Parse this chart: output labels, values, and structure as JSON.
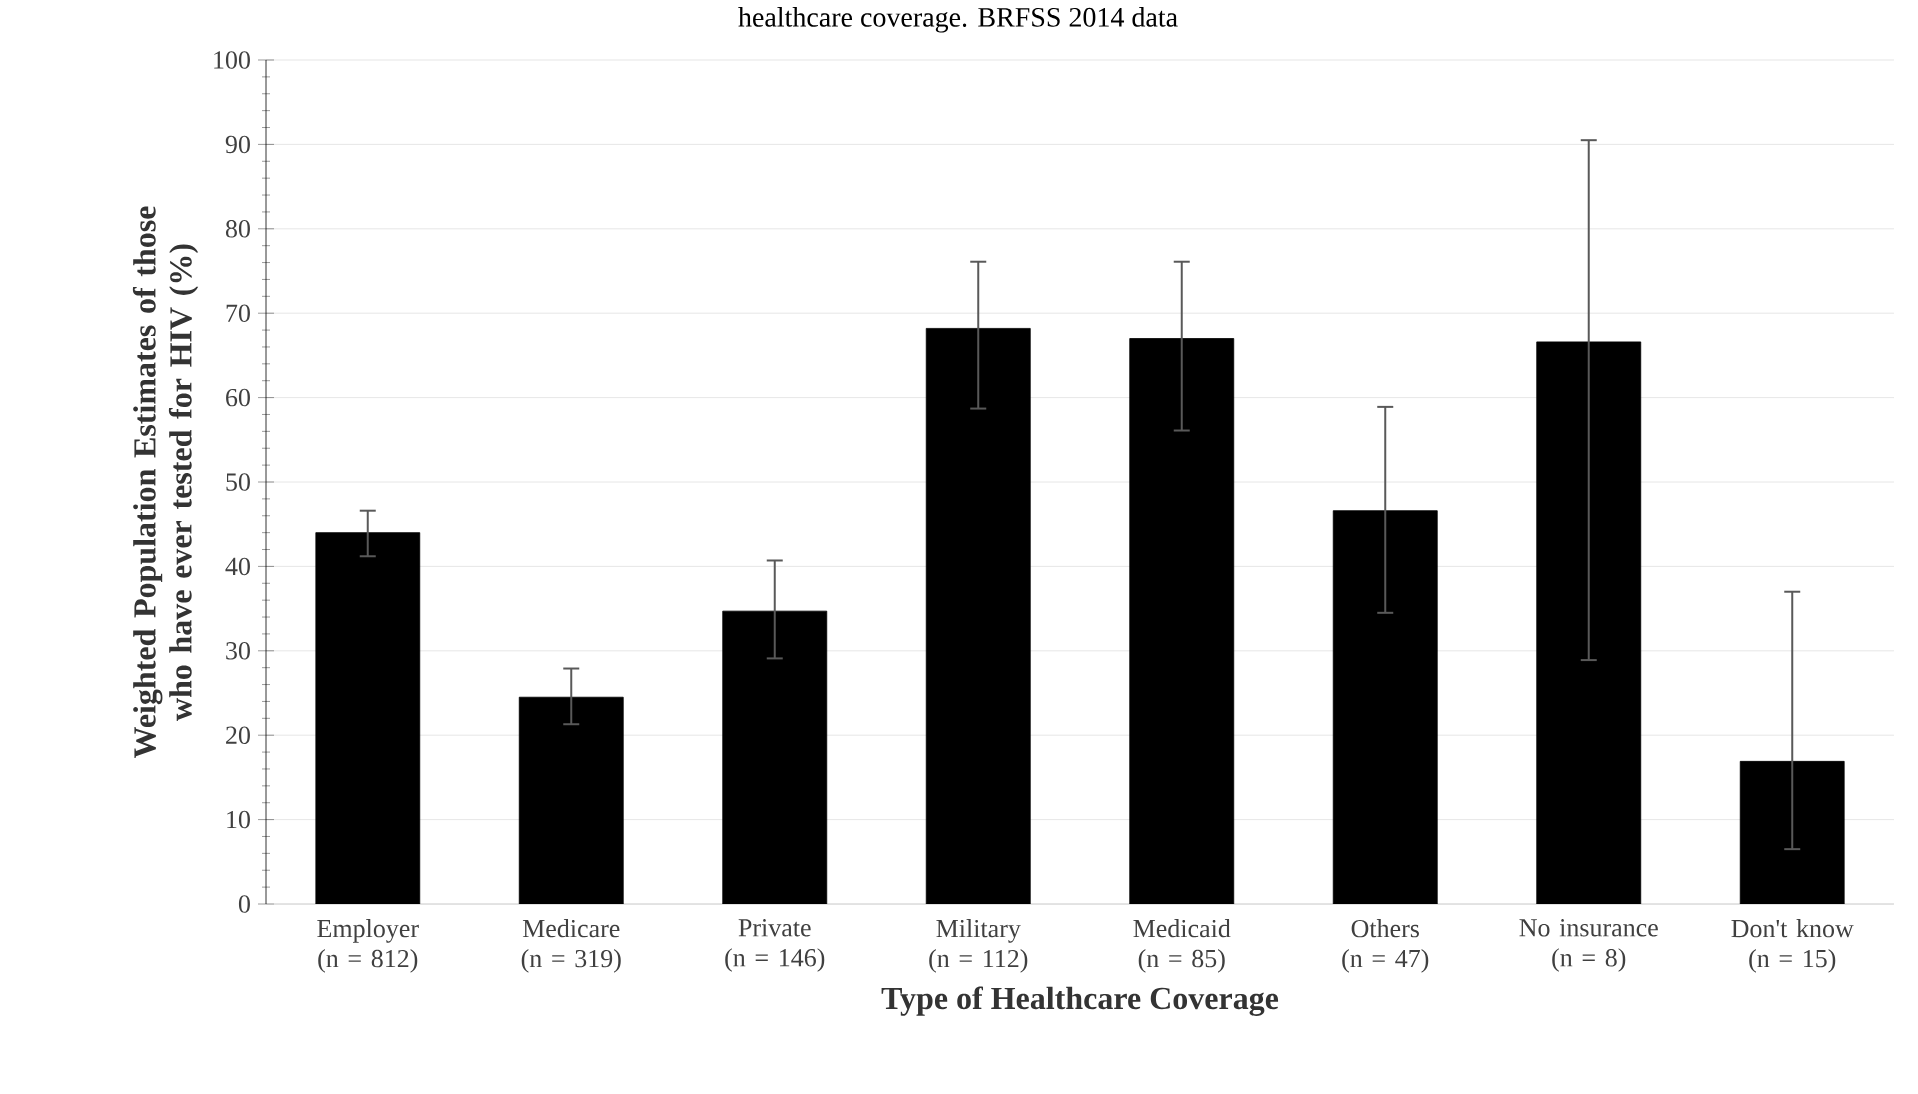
{
  "chart_data": {
    "type": "bar",
    "title": "healthcare coverage. BRFSS 2014 data",
    "xlabel": "Type of Healthcare Coverage",
    "ylabel": "Weighted Population Estimates of those who have ever tested for HIV (%)",
    "categories": [
      "Employer (n = 812)",
      "Medicare (n = 319)",
      "Private (n = 146)",
      "Military (n = 112)",
      "Medicaid (n = 85)",
      "Others (n = 47)",
      "No insurance (n = 8)",
      "Don't know (n = 15)"
    ],
    "values": [
      44.0,
      24.5,
      34.7,
      68.2,
      67.0,
      46.6,
      66.6,
      16.9
    ],
    "errors": [
      [
        41.2,
        46.6
      ],
      [
        21.3,
        27.9
      ],
      [
        29.1,
        40.7
      ],
      [
        58.7,
        76.1
      ],
      [
        56.1,
        76.1
      ],
      [
        34.5,
        58.9
      ],
      [
        28.9,
        90.5
      ],
      [
        6.5,
        37.0
      ]
    ],
    "color": "#000000",
    "ylim": [
      0,
      100
    ],
    "yticks": [
      0,
      10,
      20,
      30,
      40,
      50,
      60,
      70,
      80,
      90,
      100
    ],
    "grid": "y"
  }
}
